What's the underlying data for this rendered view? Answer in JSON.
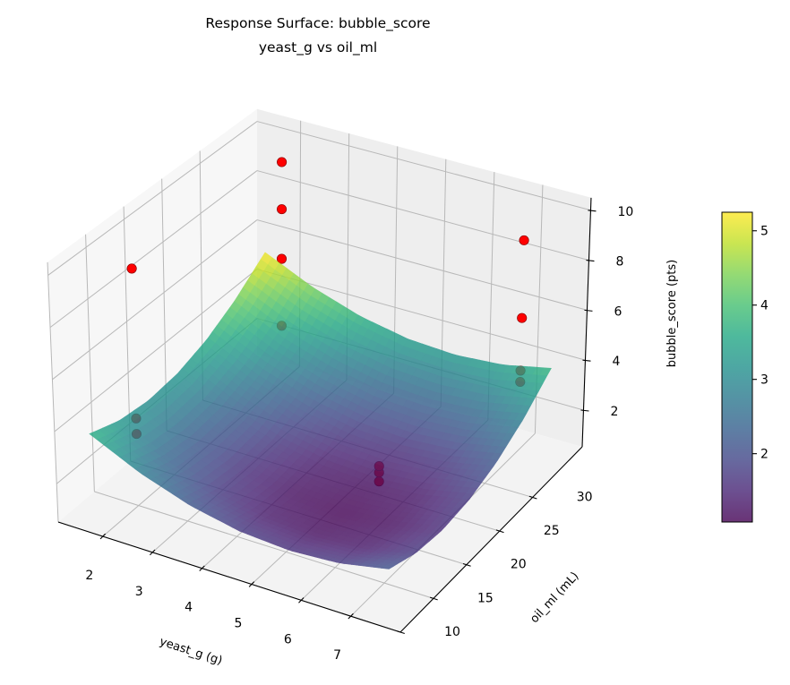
{
  "chart_data": {
    "type": "surface",
    "title": "Response Surface: bubble_score",
    "subtitle": "yeast_g vs oil_ml",
    "xlabel": "yeast_g (g)",
    "ylabel": "oil_ml (mL)",
    "zlabel": "bubble_score (pts)",
    "xlim": [
      1.1,
      8.0
    ],
    "ylim": [
      10,
      37.5
    ],
    "zlim": [
      0.53,
      10.5
    ],
    "xticks": [
      "2",
      "3",
      "4",
      "5",
      "6",
      "7"
    ],
    "yticks": [
      "10",
      "15",
      "20",
      "25",
      "30"
    ],
    "zticks": [
      "2",
      "4",
      "6",
      "8",
      "10"
    ],
    "grid": true,
    "colormap": "viridis",
    "surface_alpha": 0.8,
    "surface": {
      "x": [
        1.5,
        2.5,
        3.5,
        4.5,
        5.5,
        6.5,
        7.5
      ],
      "y": [
        12,
        16,
        20,
        24,
        28,
        32,
        36
      ],
      "z": [
        [
          3.7,
          2.8,
          2.15,
          1.76,
          1.63,
          1.75,
          2.12
        ],
        [
          3.28,
          2.38,
          1.74,
          1.35,
          1.22,
          1.34,
          1.72
        ],
        [
          3.13,
          2.23,
          1.59,
          1.21,
          1.08,
          1.21,
          1.59
        ],
        [
          3.25,
          2.36,
          1.72,
          1.34,
          1.22,
          1.35,
          1.74
        ],
        [
          3.64,
          2.76,
          2.12,
          1.75,
          1.63,
          1.76,
          2.15
        ],
        [
          4.31,
          3.42,
          2.8,
          2.42,
          2.31,
          2.44,
          2.84
        ],
        [
          5.25,
          4.37,
          3.74,
          3.37,
          3.26,
          3.4,
          3.8
        ]
      ]
    },
    "points": {
      "color": "#ff0000",
      "edge_color": "#8b0000",
      "data": [
        {
          "x": 2,
          "y": 15,
          "z": 3.9
        },
        {
          "x": 2,
          "y": 15,
          "z": 3.3
        },
        {
          "x": 2,
          "y": 15,
          "z": 9.7
        },
        {
          "x": 2,
          "y": 35,
          "z": 9.4
        },
        {
          "x": 2,
          "y": 35,
          "z": 7.5
        },
        {
          "x": 2,
          "y": 35,
          "z": 5.5
        },
        {
          "x": 2,
          "y": 35,
          "z": 2.8
        },
        {
          "x": 7,
          "y": 35,
          "z": 8.9
        },
        {
          "x": 7,
          "y": 35,
          "z": 5.8
        },
        {
          "x": 7,
          "y": 35,
          "z": 3.7
        },
        {
          "x": 7,
          "y": 35,
          "z": 3.25
        },
        {
          "x": 5.5,
          "y": 25,
          "z": 1.05
        },
        {
          "x": 5.5,
          "y": 25,
          "z": 1.4
        },
        {
          "x": 5.5,
          "y": 25,
          "z": 1.65
        }
      ]
    },
    "colorbar": {
      "range": [
        1.08,
        5.25
      ],
      "ticks": [
        "2",
        "3",
        "4",
        "5"
      ]
    },
    "colors": {
      "pane_floor": "#f3f3f3",
      "pane_left": "#f7f7f7",
      "pane_back": "#eeeeee"
    }
  }
}
